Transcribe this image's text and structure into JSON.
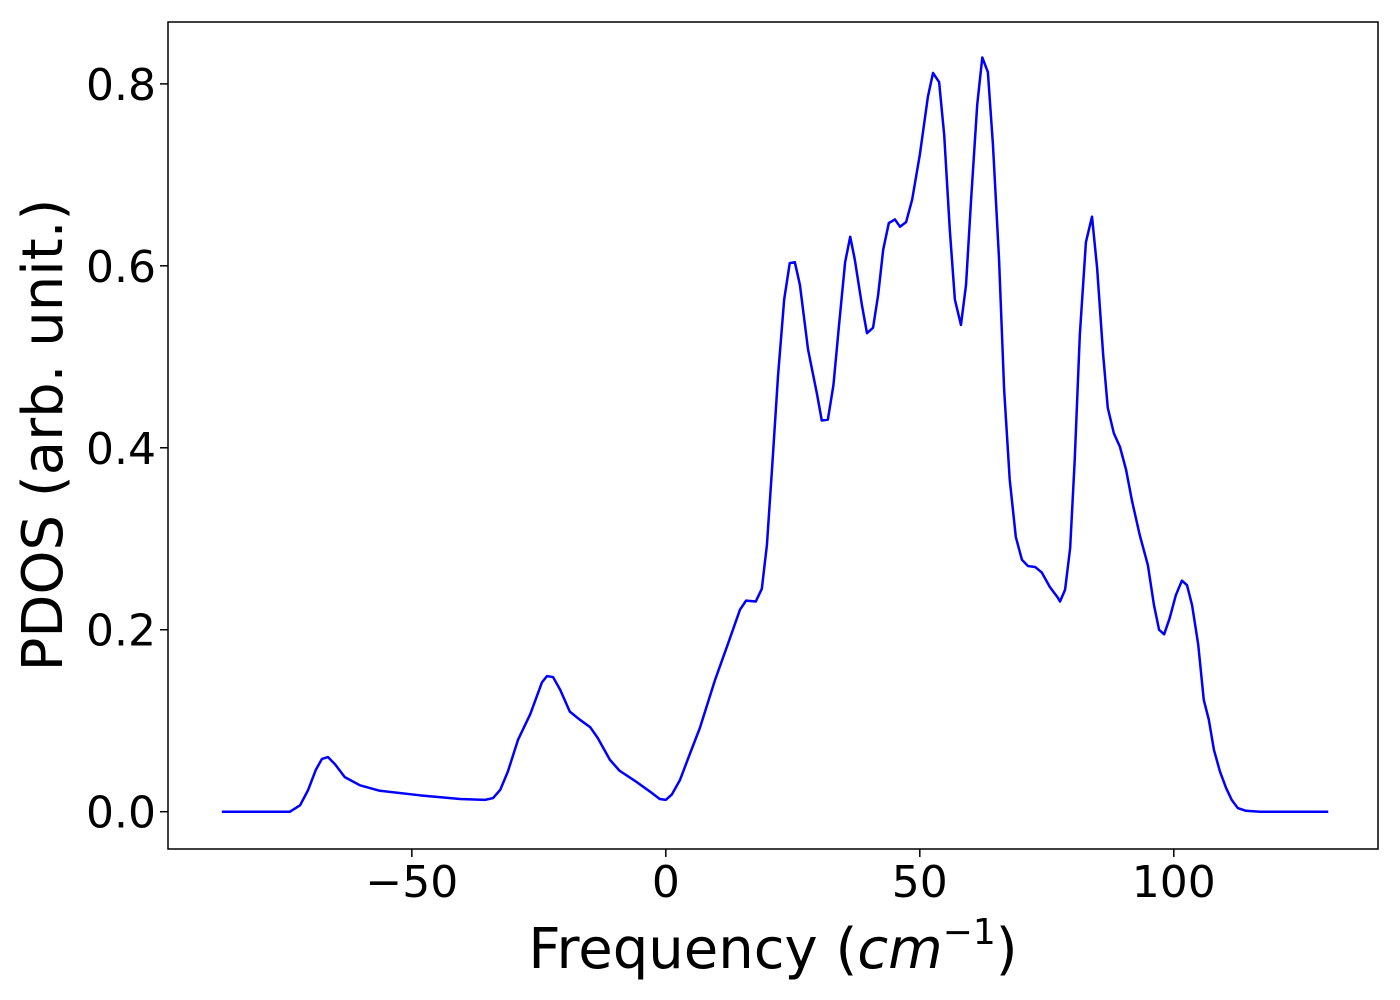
{
  "chart_data": {
    "type": "line",
    "y_label": "PDOS (arb. unit.)",
    "x_label_parts": [
      "Frequency (",
      "cm",
      "−1",
      ")"
    ],
    "xlim": [
      -98,
      140.2
    ],
    "ylim": [
      -0.041,
      0.868
    ],
    "xticks": [
      {
        "value": -50,
        "label": "−50"
      },
      0,
      50,
      100
    ],
    "yticks": [
      {
        "value": 0,
        "label": "0.0"
      },
      {
        "value": 0.2,
        "label": "0.2"
      },
      {
        "value": 0.4,
        "label": "0.4"
      },
      {
        "value": 0.6,
        "label": "0.6"
      },
      {
        "value": 0.8,
        "label": "0.8"
      }
    ],
    "series": [
      {
        "color": "#0000ff",
        "x": [
          -87.4,
          -74,
          -72,
          -70.4,
          -68.9,
          -67.7,
          -66.5,
          -65.1,
          -63.2,
          -60.2,
          -56.3,
          -48.4,
          -40.5,
          -35.6,
          -34.0,
          -32.6,
          -31.1,
          -29.1,
          -26.7,
          -24.4,
          -23.4,
          -22.2,
          -20.8,
          -18.9,
          -16.9,
          -14.9,
          -13.4,
          -11.0,
          -9.1,
          -6.1,
          -3.1,
          -1.2,
          0,
          1.2,
          2.8,
          4.7,
          6.7,
          9.7,
          12.2,
          14.6,
          15.8,
          17.7,
          18.9,
          19.9,
          20.9,
          22.1,
          23.3,
          24.4,
          25.4,
          26.4,
          28.0,
          29.8,
          30.7,
          31.9,
          33.0,
          34.1,
          35.3,
          36.3,
          37.2,
          38.6,
          39.6,
          40.8,
          41.8,
          42.8,
          43.9,
          45.1,
          46.1,
          47.3,
          48.5,
          50.0,
          51.6,
          52.6,
          53.8,
          54.8,
          55.9,
          56.9,
          58.1,
          59.1,
          60.1,
          61.3,
          62.3,
          63.4,
          64.4,
          65.6,
          66.6,
          67.7,
          68.9,
          70.1,
          71.3,
          72.7,
          74.0,
          75.6,
          77.2,
          77.6,
          78.6,
          79.6,
          80.5,
          81.5,
          82.7,
          83.9,
          84.9,
          86.1,
          87.0,
          88.2,
          89.4,
          90.6,
          91.8,
          93.3,
          94.9,
          96.1,
          97.1,
          98.1,
          99.2,
          100.4,
          101.6,
          102.6,
          103.6,
          104.8,
          105.9,
          106.9,
          107.9,
          109.1,
          110.3,
          111.4,
          112.6,
          114.2,
          117,
          130.4
        ],
        "values": [
          0,
          0,
          0.007,
          0.024,
          0.046,
          0.058,
          0.06,
          0.052,
          0.038,
          0.029,
          0.023,
          0.018,
          0.014,
          0.013,
          0.015,
          0.024,
          0.044,
          0.079,
          0.107,
          0.142,
          0.149,
          0.148,
          0.134,
          0.11,
          0.101,
          0.093,
          0.081,
          0.057,
          0.045,
          0.034,
          0.022,
          0.014,
          0.013,
          0.019,
          0.035,
          0.063,
          0.092,
          0.145,
          0.184,
          0.222,
          0.232,
          0.231,
          0.245,
          0.293,
          0.376,
          0.48,
          0.563,
          0.603,
          0.604,
          0.579,
          0.508,
          0.458,
          0.43,
          0.431,
          0.469,
          0.535,
          0.604,
          0.632,
          0.607,
          0.557,
          0.526,
          0.532,
          0.568,
          0.618,
          0.647,
          0.651,
          0.643,
          0.648,
          0.673,
          0.722,
          0.786,
          0.812,
          0.802,
          0.744,
          0.64,
          0.563,
          0.535,
          0.579,
          0.673,
          0.777,
          0.829,
          0.813,
          0.733,
          0.607,
          0.464,
          0.365,
          0.302,
          0.277,
          0.27,
          0.269,
          0.263,
          0.247,
          0.235,
          0.231,
          0.244,
          0.29,
          0.387,
          0.524,
          0.626,
          0.654,
          0.598,
          0.502,
          0.444,
          0.416,
          0.401,
          0.376,
          0.341,
          0.304,
          0.271,
          0.227,
          0.2,
          0.195,
          0.213,
          0.238,
          0.254,
          0.249,
          0.227,
          0.184,
          0.123,
          0.101,
          0.068,
          0.044,
          0.026,
          0.013,
          0.004,
          0.001,
          0,
          0
        ]
      }
    ]
  }
}
